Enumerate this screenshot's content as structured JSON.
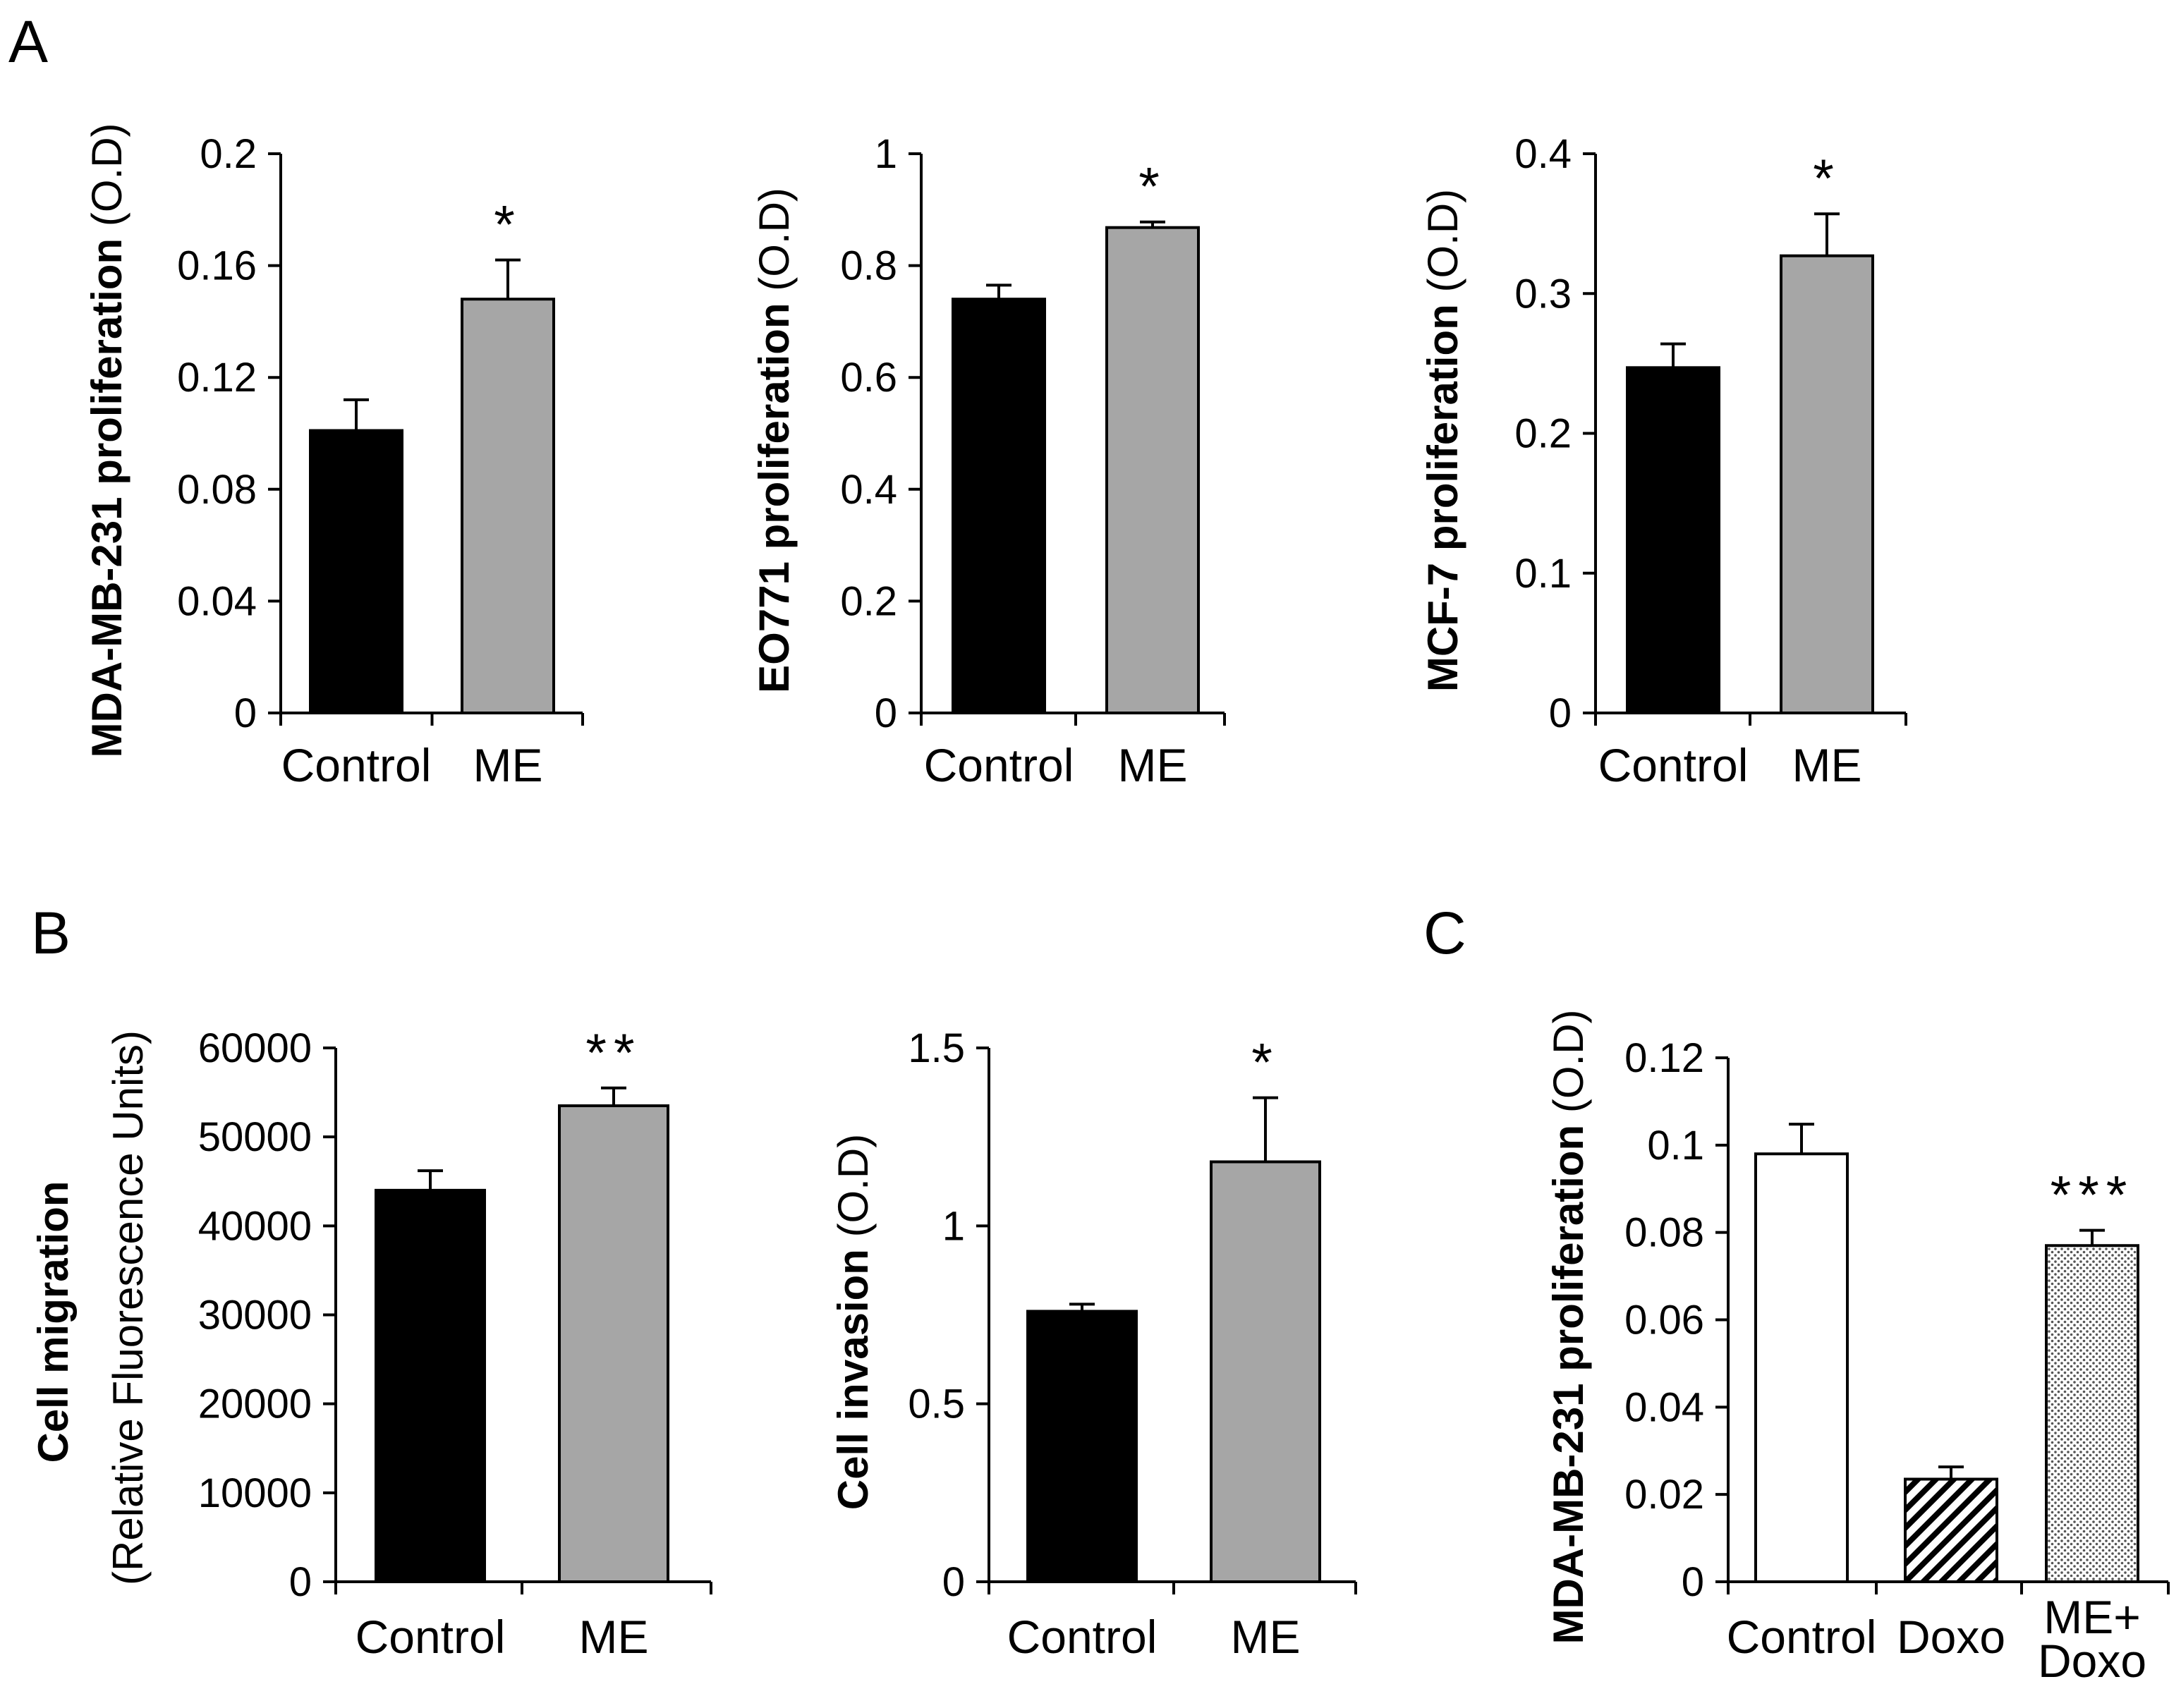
{
  "panels": [
    {
      "letter": "A"
    },
    {
      "letter": "B"
    },
    {
      "letter": "C"
    }
  ],
  "chart_data": [
    {
      "id": "a1",
      "panel": "A",
      "type": "bar",
      "ylabel_bold": "MDA-MB-231 proliferation",
      "ylabel_unit": "(O.D)",
      "ylim": [
        0,
        0.2
      ],
      "ticks": [
        0,
        0.04,
        0.08,
        0.12,
        0.16,
        0.2
      ],
      "tick_labels": [
        "0",
        "0.04",
        "0.08",
        "0.12",
        "0.16",
        "0.2"
      ],
      "categories": [
        "Control",
        "ME"
      ],
      "values": [
        0.101,
        0.148
      ],
      "errors": [
        0.011,
        0.014
      ],
      "fills": [
        "black",
        "gray"
      ],
      "significance": [
        "",
        "*"
      ]
    },
    {
      "id": "a2",
      "panel": "A",
      "type": "bar",
      "ylabel_bold": "EO771 proliferation",
      "ylabel_unit": "(O.D)",
      "ylim": [
        0,
        1
      ],
      "ticks": [
        0,
        0.2,
        0.4,
        0.6,
        0.8,
        1
      ],
      "tick_labels": [
        "0",
        "0.2",
        "0.4",
        "0.6",
        "0.8",
        "1"
      ],
      "categories": [
        "Control",
        "ME"
      ],
      "values": [
        0.74,
        0.868
      ],
      "errors": [
        0.025,
        0.01
      ],
      "fills": [
        "black",
        "gray"
      ],
      "significance": [
        "",
        "*"
      ]
    },
    {
      "id": "a3",
      "panel": "A",
      "type": "bar",
      "ylabel_bold": "MCF-7 proliferation",
      "ylabel_unit": "(O.D)",
      "ylim": [
        0,
        0.4
      ],
      "ticks": [
        0,
        0.1,
        0.2,
        0.3,
        0.4
      ],
      "tick_labels": [
        "0",
        "0.1",
        "0.2",
        "0.3",
        "0.4"
      ],
      "categories": [
        "Control",
        "ME"
      ],
      "values": [
        0.247,
        0.327
      ],
      "errors": [
        0.017,
        0.03
      ],
      "fills": [
        "black",
        "gray"
      ],
      "significance": [
        "",
        "*"
      ]
    },
    {
      "id": "b1",
      "panel": "B",
      "type": "bar",
      "ylabel_bold": "Cell migration",
      "ylabel_unit": "(Relative Fluorescence Units)",
      "ylim": [
        0,
        60000
      ],
      "ticks": [
        0,
        10000,
        20000,
        30000,
        40000,
        50000,
        60000
      ],
      "tick_labels": [
        "0",
        "10000",
        "20000",
        "30000",
        "40000",
        "50000",
        "60000"
      ],
      "categories": [
        "Control",
        "ME"
      ],
      "values": [
        44000,
        53500
      ],
      "errors": [
        2200,
        2000
      ],
      "fills": [
        "black",
        "gray"
      ],
      "significance": [
        "",
        "**"
      ]
    },
    {
      "id": "b2",
      "panel": "B",
      "type": "bar",
      "ylabel_bold": "Cell invasion",
      "ylabel_unit": "(O.D)",
      "ylim": [
        0,
        1.5
      ],
      "ticks": [
        0,
        0.5,
        1,
        1.5
      ],
      "tick_labels": [
        "0",
        "0.5",
        "1",
        "1.5"
      ],
      "categories": [
        "Control",
        "ME"
      ],
      "values": [
        0.76,
        1.18
      ],
      "errors": [
        0.02,
        0.18
      ],
      "fills": [
        "black",
        "gray"
      ],
      "significance": [
        "",
        "*"
      ]
    },
    {
      "id": "c1",
      "panel": "C",
      "type": "bar",
      "ylabel_bold": "MDA-MB-231 proliferation",
      "ylabel_unit": "(O.D)",
      "ylim": [
        0,
        0.12
      ],
      "ticks": [
        0,
        0.02,
        0.04,
        0.06,
        0.08,
        0.1,
        0.12
      ],
      "tick_labels": [
        "0",
        "0.02",
        "0.04",
        "0.06",
        "0.08",
        "0.1",
        "0.12"
      ],
      "categories": [
        "Control",
        "Doxo",
        "ME+ Doxo"
      ],
      "category_lines": [
        [
          "Control"
        ],
        [
          "Doxo"
        ],
        [
          "ME+",
          "Doxo"
        ]
      ],
      "values": [
        0.098,
        0.0235,
        0.077
      ],
      "errors": [
        0.0068,
        0.0028,
        0.0035
      ],
      "fills": [
        "white",
        "hatch",
        "dots"
      ],
      "significance": [
        "",
        "",
        "***"
      ]
    }
  ]
}
